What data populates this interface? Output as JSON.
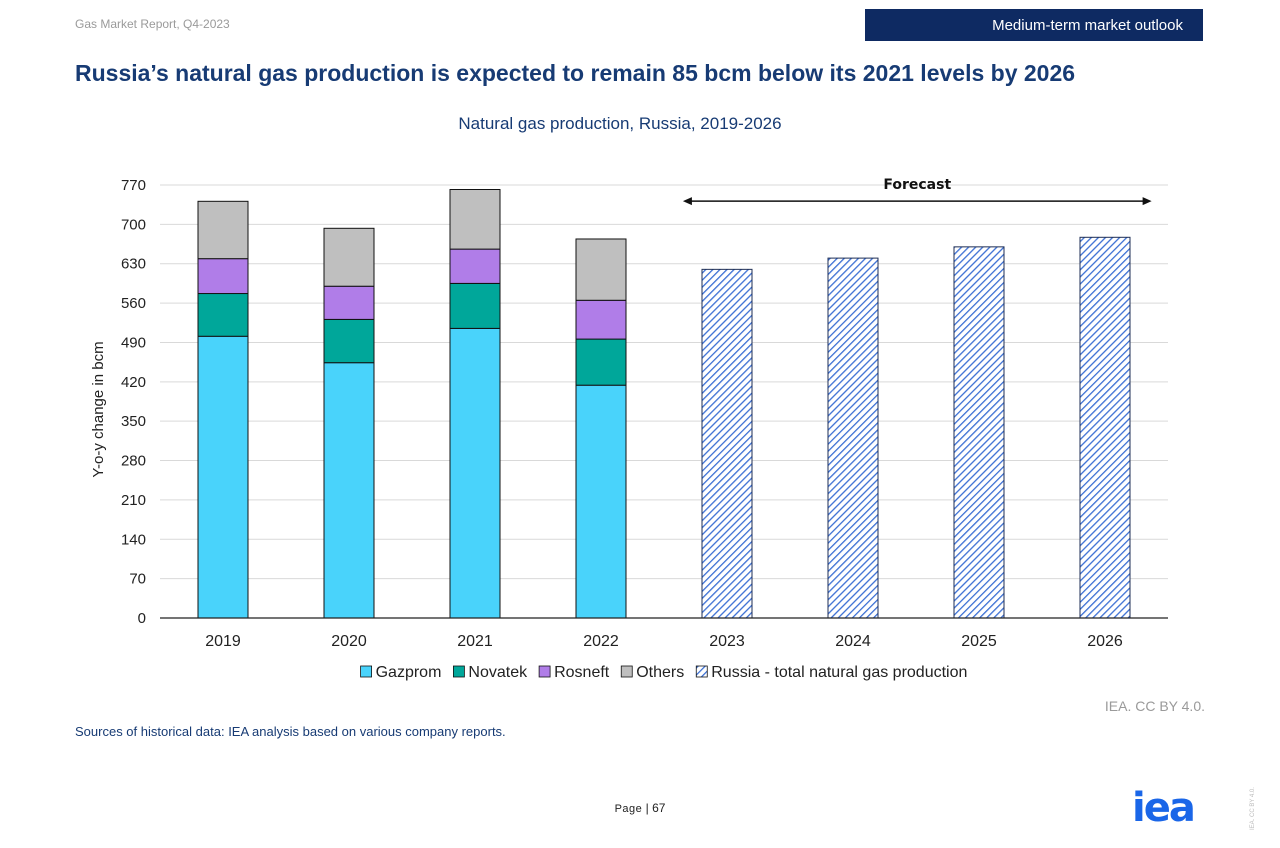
{
  "header": {
    "report_name": "Gas Market Report, Q4-2023",
    "section": "Medium-term market outlook"
  },
  "title": "Russia’s natural gas production is expected to remain 85 bcm below its 2021 levels by 2026",
  "footer": {
    "credit": "IEA. CC BY 4.0.",
    "sources": "Sources of historical data: IEA analysis based on various company reports.",
    "page_label": "Page",
    "page_number": "67",
    "logo_text": "iea",
    "side_mark": "IEA. CC BY 4.0."
  },
  "chart_data": {
    "type": "bar",
    "stacked": true,
    "title": "Natural gas production, Russia, 2019-2026",
    "ylabel": "Y-o-y change in bcm",
    "xlabel": "",
    "ylim": [
      0,
      770
    ],
    "yticks": [
      0,
      70,
      140,
      210,
      280,
      350,
      420,
      490,
      560,
      630,
      700,
      770
    ],
    "grid": true,
    "legend_position": "bottom",
    "categories": [
      "2019",
      "2020",
      "2021",
      "2022",
      "2023",
      "2024",
      "2025",
      "2026"
    ],
    "series": [
      {
        "name": "Gazprom",
        "color": "#49d3fb",
        "pattern": "solid",
        "values": [
          501,
          454,
          515,
          414,
          null,
          null,
          null,
          null
        ]
      },
      {
        "name": "Novatek",
        "color": "#00a79a",
        "pattern": "solid",
        "values": [
          76,
          77,
          80,
          82,
          null,
          null,
          null,
          null
        ]
      },
      {
        "name": "Rosneft",
        "color": "#b07de8",
        "pattern": "solid",
        "values": [
          62,
          59,
          61,
          69,
          null,
          null,
          null,
          null
        ]
      },
      {
        "name": "Others",
        "color": "#bfbfbf",
        "pattern": "solid",
        "values": [
          102,
          103,
          106,
          109,
          null,
          null,
          null,
          null
        ]
      },
      {
        "name": "Russia - total natural gas production",
        "color": "#3b6fd4",
        "pattern": "hatched",
        "values": [
          null,
          null,
          null,
          null,
          620,
          640,
          660,
          677
        ]
      }
    ],
    "annotations": [
      {
        "text": "Forecast",
        "from_category": "2023",
        "to_category": "2026",
        "type": "double-arrow",
        "y": 720
      }
    ]
  }
}
